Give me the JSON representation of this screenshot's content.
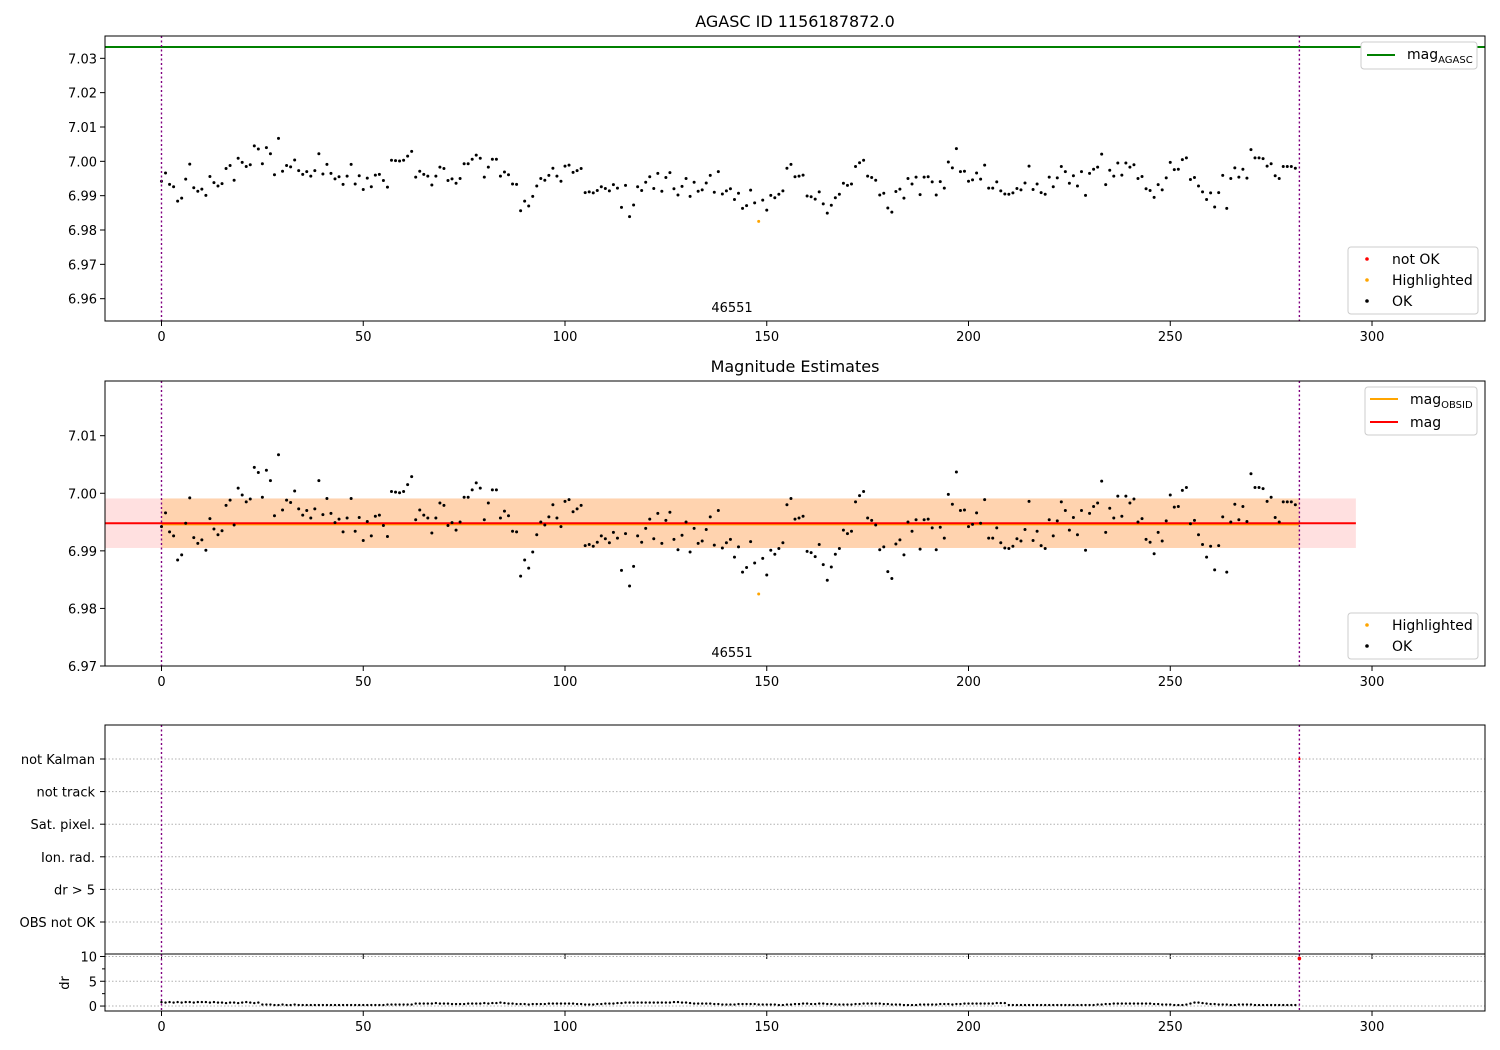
{
  "figure": {
    "top_title": "AGASC ID 1156187872.0",
    "middle_title": "Magnitude Estimates",
    "obsid_label": "46551"
  },
  "chart_data": [
    {
      "type": "scatter",
      "title": "AGASC ID 1156187872.0",
      "xlim": [
        -14,
        328
      ],
      "ylim": [
        6.9535,
        7.0365
      ],
      "xticks": [
        0,
        50,
        100,
        150,
        200,
        250,
        300
      ],
      "yticks": [
        6.96,
        6.97,
        6.98,
        6.99,
        7.0,
        7.01,
        7.02,
        7.03
      ],
      "hlines": [
        {
          "name": "mag_AGASC",
          "value": 7.0333,
          "color": "#008000"
        }
      ],
      "vlines": [
        0,
        282
      ],
      "annotation": {
        "text": "46551",
        "x": 141,
        "y": 6.9555
      },
      "legend_lines": [
        {
          "label": "mag",
          "sub": "AGASC",
          "color": "#008000"
        }
      ],
      "legend_points": [
        {
          "label": "not OK",
          "color": "#ff0000"
        },
        {
          "label": "Highlighted",
          "color": "#ffa500"
        },
        {
          "label": "OK",
          "color": "#000000"
        }
      ],
      "highlighted": [
        {
          "x": 148,
          "y": 6.9825
        }
      ]
    },
    {
      "type": "scatter",
      "title": "Magnitude Estimates",
      "xlim": [
        -14,
        328
      ],
      "ylim": [
        6.97,
        7.0195
      ],
      "xticks": [
        0,
        50,
        100,
        150,
        200,
        250,
        300
      ],
      "yticks": [
        6.97,
        6.98,
        6.99,
        7.0,
        7.01
      ],
      "hlines": [
        {
          "name": "mag",
          "value": 6.9948,
          "color": "#ff0000",
          "band": [
            6.9905,
            6.9991
          ],
          "x_range": [
            -14,
            296
          ]
        },
        {
          "name": "mag_OBSID",
          "value": 6.9946,
          "color": "#ffa500",
          "band": [
            6.9905,
            6.9991
          ],
          "x_range": [
            0,
            282
          ]
        }
      ],
      "vlines": [
        0,
        282
      ],
      "annotation": {
        "text": "46551",
        "x": 141,
        "y": 6.9715
      },
      "legend_lines": [
        {
          "label": "mag",
          "sub": "OBSID",
          "color": "#ffa500"
        },
        {
          "label": "mag",
          "sub": "",
          "color": "#ff0000"
        }
      ],
      "legend_points": [
        {
          "label": "Highlighted",
          "color": "#ffa500"
        },
        {
          "label": "OK",
          "color": "#000000"
        }
      ],
      "highlighted": [
        {
          "x": 148,
          "y": 6.9825
        }
      ]
    },
    {
      "type": "scatter",
      "title": "",
      "categories": [
        "not Kalman",
        "not track",
        "Sat. pixel.",
        "Ion. rad.",
        "dr > 5",
        "OBS not OK"
      ],
      "xlim": [
        -14,
        328
      ],
      "vlines": [
        0,
        282
      ],
      "flags_flagged_points": [
        {
          "x": 282,
          "category": "not Kalman"
        }
      ]
    },
    {
      "type": "scatter",
      "title": "",
      "ylabel": "dr",
      "xlim": [
        -14,
        328
      ],
      "ylim": [
        -1,
        10.5
      ],
      "xticks": [
        0,
        50,
        100,
        150,
        200,
        250,
        300
      ],
      "yticks": [
        0,
        5,
        10
      ],
      "vlines": [
        0,
        282
      ],
      "notok_points": [
        {
          "x": 282,
          "y": 9.6
        }
      ]
    }
  ],
  "series_mag": [
    6.9942,
    6.9966,
    6.9933,
    6.9926,
    6.9884,
    6.9893,
    6.9948,
    6.9992,
    6.9923,
    6.9913,
    6.9919,
    6.9901,
    6.9956,
    6.9938,
    6.9928,
    6.9935,
    6.9979,
    6.9988,
    6.9945,
    7.0009,
    6.9997,
    6.9985,
    6.999,
    7.0045,
    7.0036,
    6.9993,
    7.004,
    7.0022,
    6.9961,
    7.0067,
    6.9971,
    6.9988,
    6.9984,
    7.0004,
    6.9973,
    6.9962,
    6.997,
    6.9957,
    6.9973,
    7.0022,
    6.9963,
    6.9991,
    6.9965,
    6.9949,
    6.9955,
    6.9933,
    6.9957,
    6.9991,
    6.9934,
    6.9958,
    6.9918,
    6.9951,
    6.9926,
    6.996,
    6.9962,
    6.9944,
    6.9925,
    7.0003,
    7.0002,
    7.0001,
    7.0003,
    7.0015,
    7.0029,
    6.9954,
    6.9971,
    6.9962,
    6.9957,
    6.9931,
    6.9957,
    6.9983,
    6.9979,
    6.9944,
    6.9949,
    6.9936,
    6.995,
    6.9993,
    6.9993,
    7.0006,
    7.0018,
    7.0009,
    6.9954,
    6.9983,
    7.0006,
    7.0006,
    6.9957,
    6.9969,
    6.9961,
    6.9934,
    6.9933,
    6.9856,
    6.9884,
    6.987,
    6.9898,
    6.9928,
    6.995,
    6.9945,
    6.9959,
    6.998,
    6.9957,
    6.9942,
    6.9986,
    6.9989,
    6.9968,
    6.9973,
    6.9979,
    6.9909,
    6.9911,
    6.9908,
    6.9915,
    6.9926,
    6.9921,
    6.9914,
    6.9932,
    6.9922,
    6.9866,
    6.993,
    6.9839,
    6.9873,
    6.9926,
    6.9915,
    6.9939,
    6.9955,
    6.9921,
    6.9965,
    6.9913,
    6.9953,
    6.9967,
    6.992,
    6.9902,
    6.9927,
    6.995,
    6.9898,
    6.9939,
    6.9913,
    6.9917,
    6.9937,
    6.9959,
    6.991,
    6.997,
    6.9905,
    6.9914,
    6.992,
    6.9889,
    6.9907,
    6.9863,
    6.9871,
    6.9916,
    6.9879,
    6.9825,
    6.9887,
    6.9858,
    6.9901,
    6.9894,
    6.9904,
    6.9914,
    6.998,
    6.9991,
    6.9955,
    6.9957,
    6.996,
    6.9899,
    6.9897,
    6.989,
    6.9911,
    6.9876,
    6.9849,
    6.9872,
    6.9894,
    6.9904,
    6.9936,
    6.993,
    6.9934,
    6.9985,
    6.9996,
    7.0003,
    6.9957,
    6.9953,
    6.9945,
    6.9902,
    6.9907,
    6.9864,
    6.9852,
    6.9912,
    6.9919,
    6.9893,
    6.995,
    6.9934,
    6.9954,
    6.9903,
    6.9954,
    6.9955,
    6.994,
    6.9902,
    6.9941,
    6.9922,
    6.9998,
    6.9981,
    7.0037,
    6.997,
    6.9971,
    6.9942,
    6.9946,
    6.9966,
    6.9948,
    6.9989,
    6.9922,
    6.9922,
    6.994,
    6.9914,
    6.9905,
    6.9904,
    6.9908,
    6.9921,
    6.9917,
    6.9937,
    6.9986,
    6.9918,
    6.9934,
    6.9909,
    6.9904,
    6.9954,
    6.9926,
    6.9952,
    6.9985,
    6.997,
    6.9936,
    6.9958,
    6.9928,
    6.997,
    6.9901,
    6.9965,
    6.9977,
    6.9983,
    7.0021,
    6.9932,
    6.9974,
    6.9957,
    6.9995,
    6.996,
    6.9995,
    6.9983,
    6.999,
    6.995,
    6.9956,
    6.992,
    6.9915,
    6.9895,
    6.9932,
    6.9917,
    6.9952,
    6.9997,
    6.9976,
    6.9977,
    7.0005,
    7.001,
    6.9947,
    6.9953,
    6.9928,
    6.9911,
    6.9889,
    6.9908,
    6.9867,
    6.9909,
    6.9959,
    6.9863,
    6.995,
    6.9981,
    6.9954,
    6.9977,
    6.9951,
    7.0034,
    7.001,
    7.001,
    7.0008,
    6.9986,
    6.9993,
    6.9958,
    6.995,
    6.9985,
    6.9985,
    6.9985,
    6.998
  ],
  "series_dr": [
    0.8,
    0.7,
    0.8,
    0.7,
    0.8,
    0.7,
    0.8,
    0.8,
    0.7,
    0.8,
    0.8,
    0.8,
    0.7,
    0.8,
    0.7,
    0.7,
    0.6,
    0.7,
    0.7,
    0.6,
    0.7,
    0.8,
    0.7,
    0.6,
    0.7,
    0.3,
    0.3,
    0.3,
    0.2,
    0.2,
    0.3,
    0.2,
    0.2,
    0.3,
    0.2,
    0.2,
    0.2,
    0.2,
    0.2,
    0.2,
    0.2,
    0.2,
    0.2,
    0.2,
    0.2,
    0.2,
    0.2,
    0.2,
    0.2,
    0.2,
    0.2,
    0.2,
    0.2,
    0.2,
    0.2,
    0.2,
    0.3,
    0.3,
    0.3,
    0.3,
    0.3,
    0.3,
    0.3,
    0.5,
    0.5,
    0.5,
    0.5,
    0.5,
    0.6,
    0.5,
    0.5,
    0.5,
    0.4,
    0.4,
    0.4,
    0.4,
    0.5,
    0.5,
    0.5,
    0.5,
    0.6,
    0.5,
    0.6,
    0.6,
    0.7,
    0.6,
    0.5,
    0.5,
    0.4,
    0.4,
    0.4,
    0.3,
    0.4,
    0.4,
    0.4,
    0.4,
    0.5,
    0.5,
    0.5,
    0.5,
    0.5,
    0.5,
    0.5,
    0.4,
    0.4,
    0.3,
    0.3,
    0.3,
    0.4,
    0.4,
    0.5,
    0.5,
    0.5,
    0.6,
    0.6,
    0.7,
    0.7,
    0.7,
    0.7,
    0.7,
    0.7,
    0.7,
    0.7,
    0.7,
    0.7,
    0.7,
    0.7,
    0.8,
    0.8,
    0.7,
    0.7,
    0.6,
    0.5,
    0.5,
    0.5,
    0.5,
    0.5,
    0.4,
    0.4,
    0.3,
    0.3,
    0.3,
    0.3,
    0.4,
    0.4,
    0.4,
    0.4,
    0.4,
    0.3,
    0.3,
    0.3,
    0.3,
    0.3,
    0.2,
    0.2,
    0.3,
    0.3,
    0.4,
    0.4,
    0.5,
    0.5,
    0.4,
    0.4,
    0.5,
    0.5,
    0.4,
    0.4,
    0.3,
    0.3,
    0.3,
    0.3,
    0.3,
    0.4,
    0.4,
    0.5,
    0.5,
    0.5,
    0.5,
    0.5,
    0.4,
    0.4,
    0.3,
    0.3,
    0.3,
    0.2,
    0.2,
    0.2,
    0.2,
    0.3,
    0.3,
    0.3,
    0.3,
    0.3,
    0.4,
    0.4,
    0.4,
    0.3,
    0.4,
    0.4,
    0.5,
    0.5,
    0.5,
    0.5,
    0.5,
    0.5,
    0.5,
    0.5,
    0.6,
    0.6,
    0.6,
    0.2,
    0.2,
    0.2,
    0.2,
    0.2,
    0.2,
    0.2,
    0.2,
    0.2,
    0.2,
    0.2,
    0.2,
    0.2,
    0.2,
    0.2,
    0.2,
    0.2,
    0.2,
    0.2,
    0.2,
    0.2,
    0.2,
    0.3,
    0.3,
    0.4,
    0.4,
    0.5,
    0.5,
    0.5,
    0.5,
    0.5,
    0.5,
    0.5,
    0.5,
    0.5,
    0.5,
    0.4,
    0.4,
    0.3,
    0.3,
    0.3,
    0.2,
    0.2,
    0.2,
    0.3,
    0.5,
    0.7,
    0.7,
    0.6,
    0.5,
    0.4,
    0.4,
    0.3,
    0.3,
    0.3,
    0.2,
    0.2,
    0.3,
    0.3,
    0.3,
    0.3,
    0.2,
    0.2,
    0.2,
    0.2,
    0.2,
    0.2,
    0.2,
    0.2,
    0.2,
    0.2,
    0.2
  ]
}
